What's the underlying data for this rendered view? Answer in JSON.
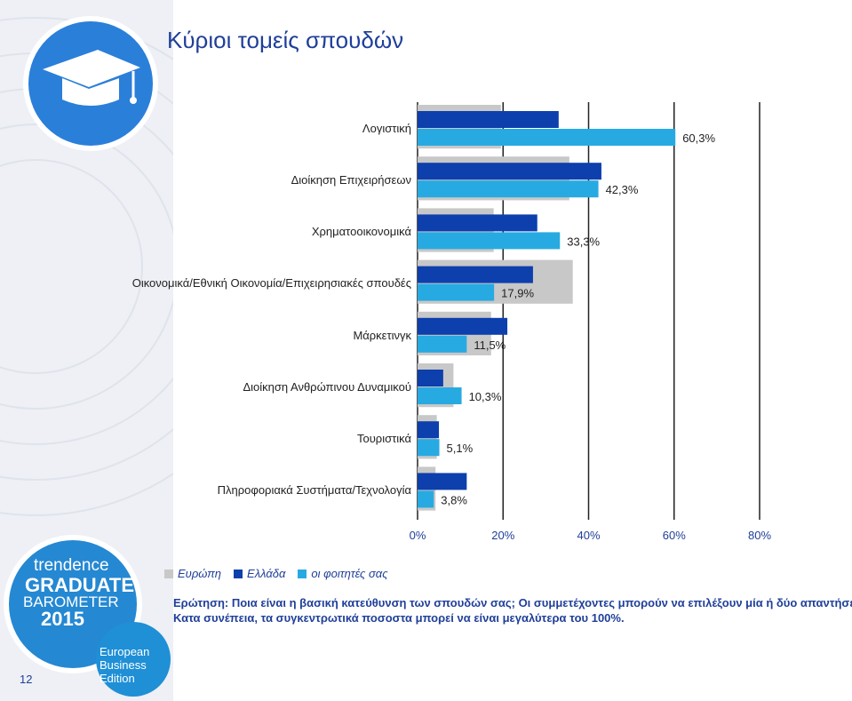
{
  "title": "Κύριοι τομείς σπουδών",
  "colors": {
    "europe": "#c8c8c8",
    "greece": "#0d3fad",
    "students": "#27aae1",
    "sidebar": "#eceef3",
    "logo_blue": "#1e5dbe",
    "logo_bg": "#1f8fd6"
  },
  "chart_data": {
    "type": "bar",
    "orientation": "horizontal",
    "categories": [
      "Λογιστική",
      "Διοίκηση Επιχειρήσεων",
      "Χρηματοοικονομικά",
      "Οικονομικά/Εθνική Οικονομία/Επιχειρησιακές σπουδές",
      "Μάρκετινγκ",
      "Διοίκηση Ανθρώπινου Δυναμικού",
      "Τουριστικά",
      "Πληροφοριακά Συστήματα/Τεχνολογία"
    ],
    "series": [
      {
        "name": "Ευρώπη",
        "values": [
          19.5,
          35.5,
          17.8,
          36.3,
          17.2,
          8.4,
          4.5,
          4.2
        ]
      },
      {
        "name": "Ελλάδα",
        "values": [
          33.0,
          43.0,
          28.0,
          27.0,
          21.0,
          6.0,
          5.0,
          11.5
        ]
      },
      {
        "name": "οι φοιτητές σας",
        "values": [
          60.3,
          42.3,
          33.3,
          17.9,
          11.5,
          10.3,
          5.1,
          3.8
        ]
      }
    ],
    "data_labels": [
      "60,3%",
      "42,3%",
      "33,3%",
      "17,9%",
      "11,5%",
      "10,3%",
      "5,1%",
      "3,8%"
    ],
    "xlim": [
      0,
      80
    ],
    "xticks": [
      "0%",
      "20%",
      "40%",
      "60%",
      "80%"
    ],
    "grid": true,
    "legend_position": "bottom-left"
  },
  "notes": [
    "Ερώτηση: Ποια είναι η βασική κατεύθυνση των σπουδών σας; Οι συμμετέχοντες μπορούν να επιλέξουν μία ή δύο απαντήσεις.",
    "Κατα συνέπεια, τα συγκεντρωτικά ποσοστα μπορεί να είναι μεγαλύτερα του 100%."
  ],
  "logo": {
    "line1": "trendence",
    "line2": "GRADUATE",
    "line3": "BAROMETER",
    "year": "2015",
    "edition1": "European",
    "edition2": "Business",
    "edition3": "Edition"
  },
  "page_number": "12",
  "icons": [
    "graduation-cap-icon"
  ]
}
